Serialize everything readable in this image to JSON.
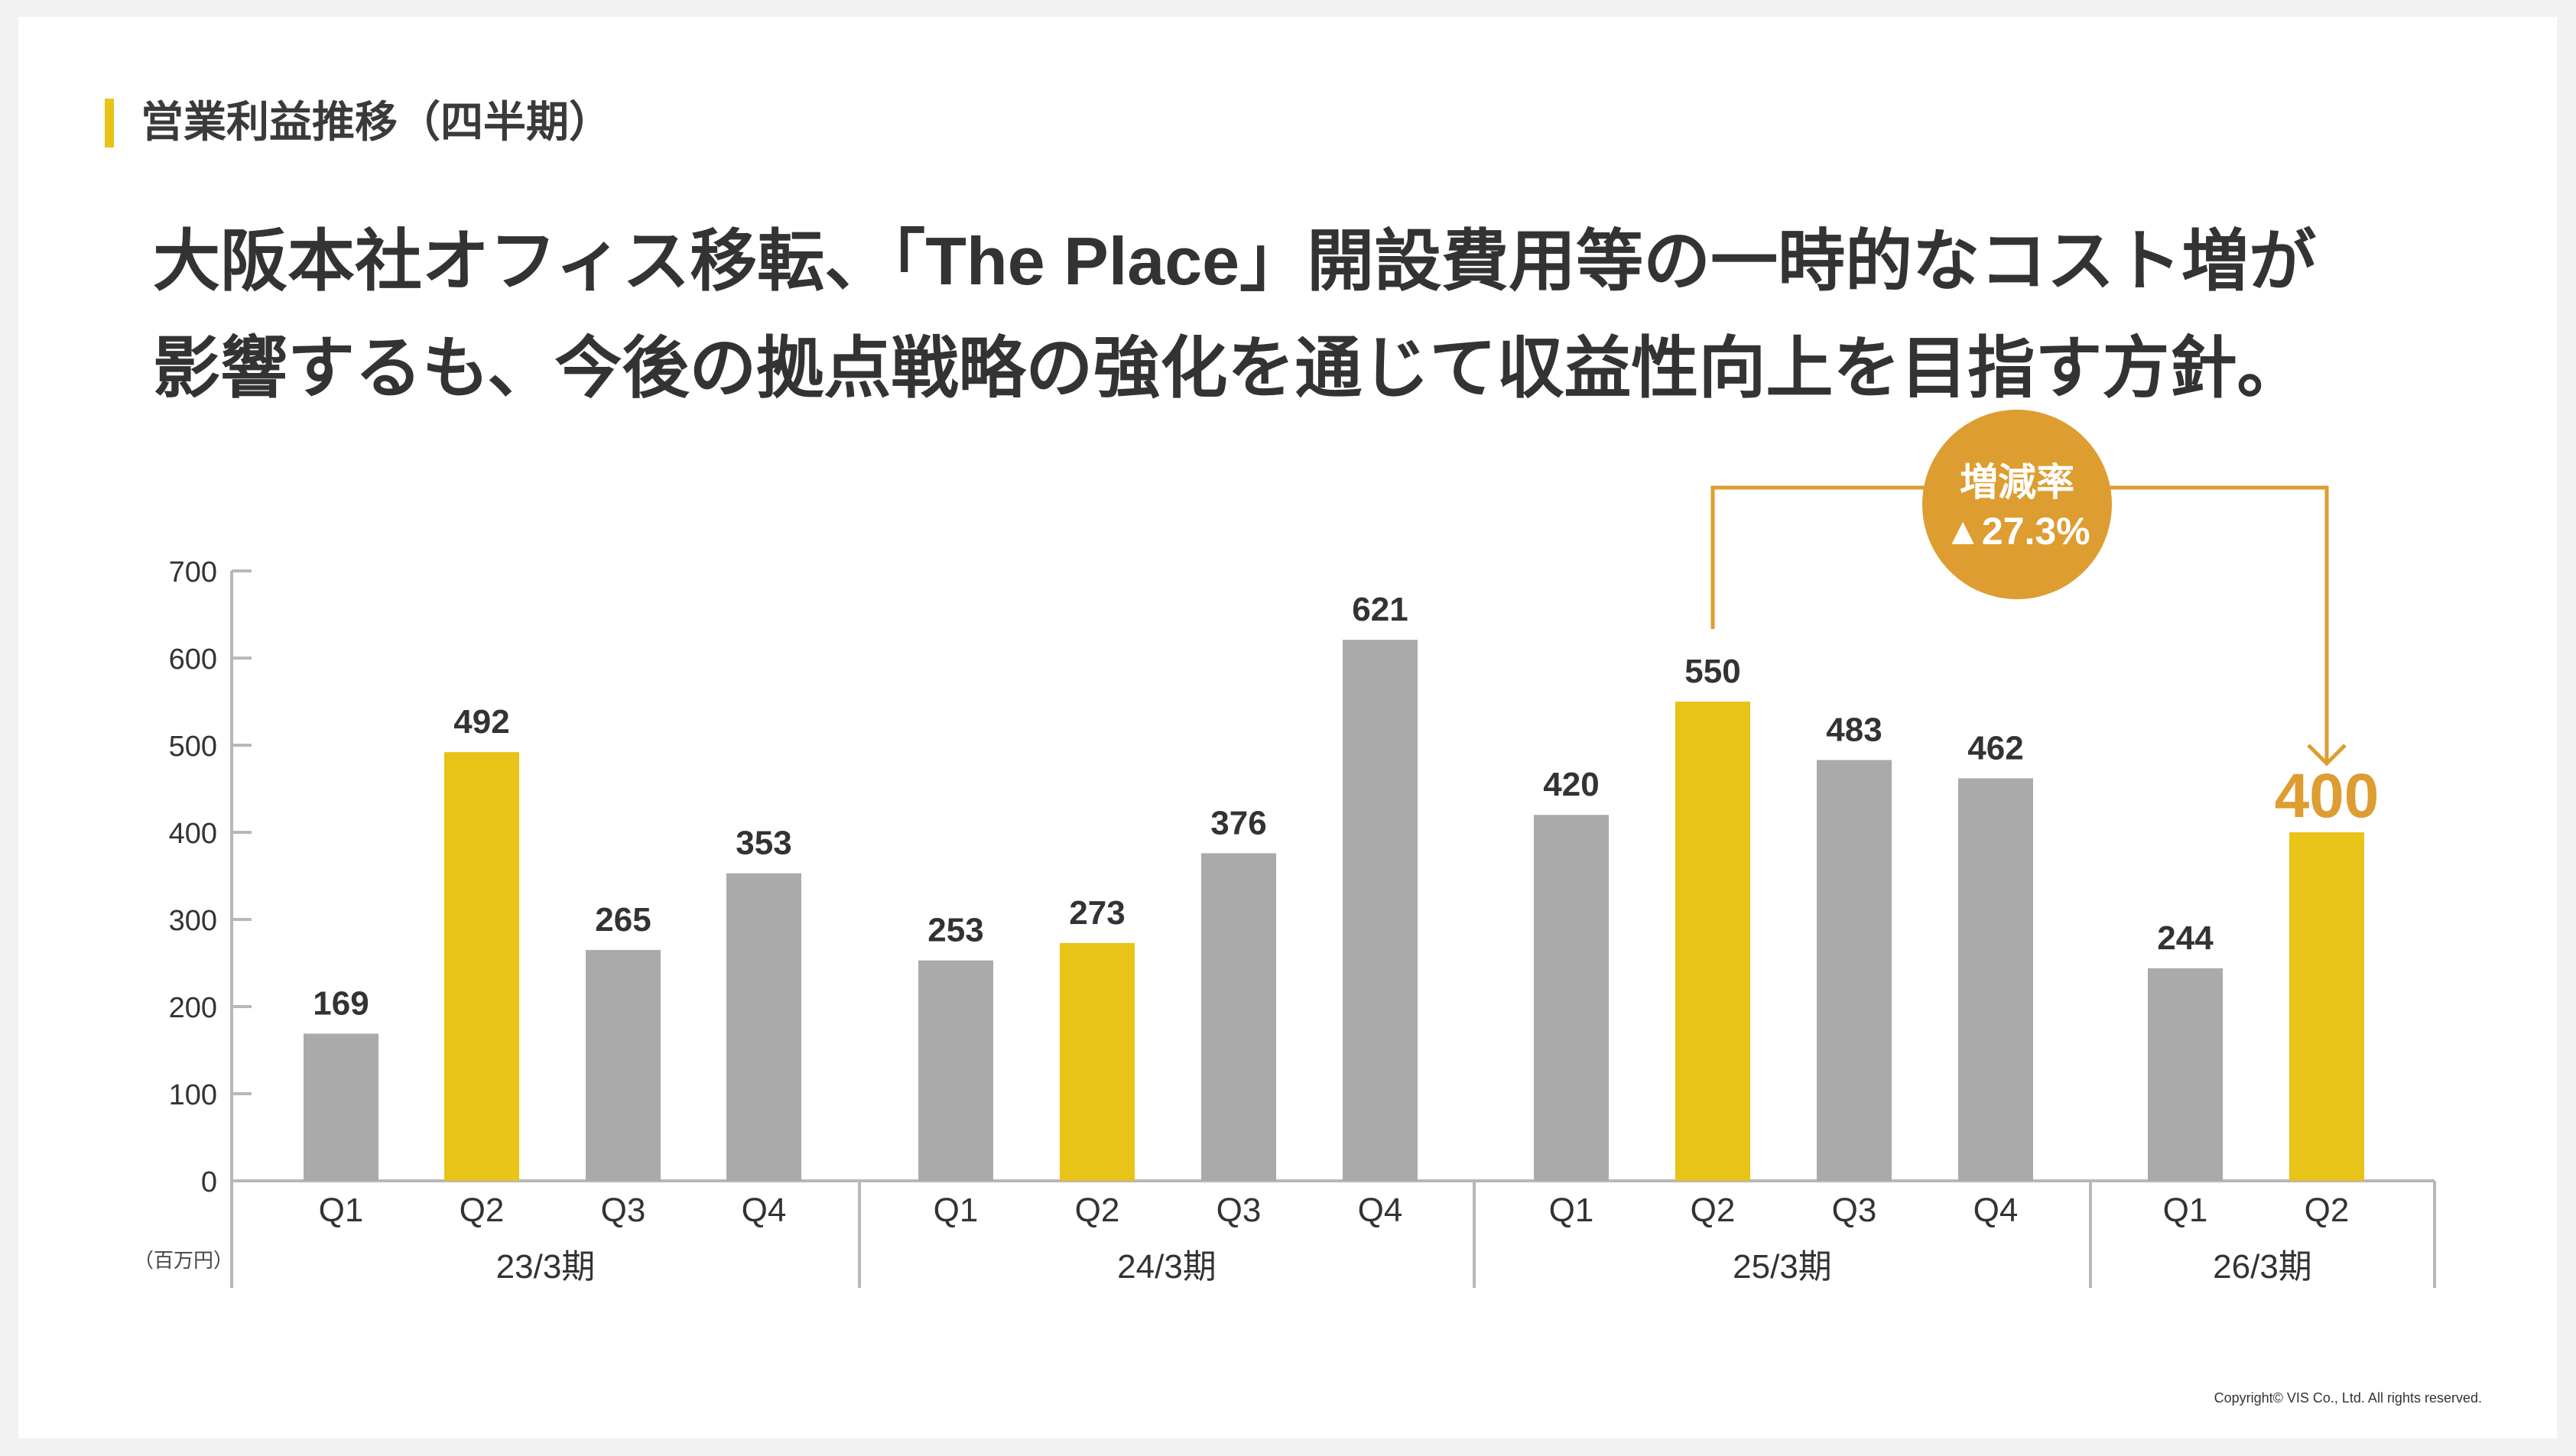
{
  "section": {
    "title": "営業利益推移（四半期）"
  },
  "headline": {
    "line1": "大阪本社オフィス移転、「The Place」開設費用等の一時的なコスト増が",
    "line2": "影響するも、今後の拠点戦略の強化を通じて収益性向上を目指す方針。"
  },
  "footer": {
    "copyright": "Copyright© VIS Co., Ltd. All rights reserved."
  },
  "colors": {
    "highlight": "#e8c318",
    "base": "#aaaaaa",
    "accent": "#dd9d30",
    "axis": "#b8b8b8"
  },
  "chart_data": {
    "type": "bar",
    "unit_label": "（百万円）",
    "ylim": [
      0,
      700
    ],
    "yticks": [
      0,
      100,
      200,
      300,
      400,
      500,
      600,
      700
    ],
    "grid": false,
    "groups": [
      {
        "label": "23/3期",
        "bars": [
          {
            "q": "Q1",
            "value": 169,
            "highlight": false
          },
          {
            "q": "Q2",
            "value": 492,
            "highlight": true
          },
          {
            "q": "Q3",
            "value": 265,
            "highlight": false
          },
          {
            "q": "Q4",
            "value": 353,
            "highlight": false
          }
        ]
      },
      {
        "label": "24/3期",
        "bars": [
          {
            "q": "Q1",
            "value": 253,
            "highlight": false
          },
          {
            "q": "Q2",
            "value": 273,
            "highlight": true
          },
          {
            "q": "Q3",
            "value": 376,
            "highlight": false
          },
          {
            "q": "Q4",
            "value": 621,
            "highlight": false
          }
        ]
      },
      {
        "label": "25/3期",
        "bars": [
          {
            "q": "Q1",
            "value": 420,
            "highlight": false
          },
          {
            "q": "Q2",
            "value": 550,
            "highlight": true
          },
          {
            "q": "Q3",
            "value": 483,
            "highlight": false
          },
          {
            "q": "Q4",
            "value": 462,
            "highlight": false
          }
        ]
      },
      {
        "label": "26/3期",
        "bars": [
          {
            "q": "Q1",
            "value": 244,
            "highlight": false
          },
          {
            "q": "Q2",
            "value": 400,
            "highlight": true,
            "emphasis": true
          }
        ]
      }
    ],
    "annotation": {
      "title": "増減率",
      "value": "▲27.3%",
      "from": {
        "group": 2,
        "bar": 1
      },
      "to": {
        "group": 3,
        "bar": 1
      }
    }
  }
}
